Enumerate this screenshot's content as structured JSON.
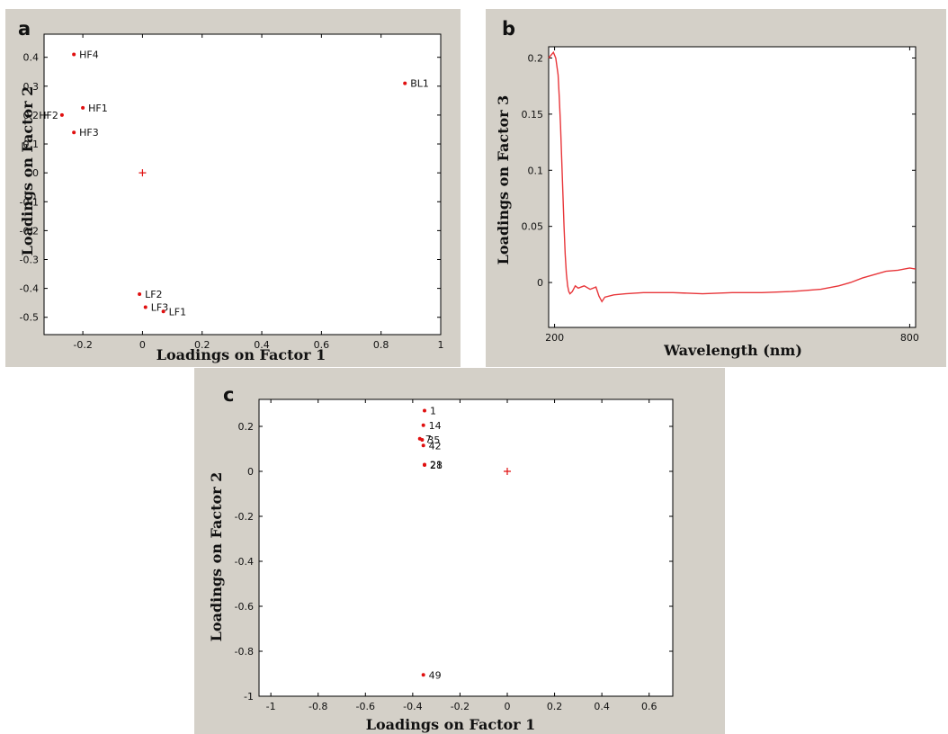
{
  "chart_data": [
    {
      "panel": "a",
      "type": "scatter",
      "xlabel": "Loadings on Factor 1",
      "ylabel": "Loadings on Factor 2",
      "xlim": [
        -0.33,
        1.0
      ],
      "ylim": [
        -0.56,
        0.48
      ],
      "xticks": [
        {
          "v": -0.2,
          "label": "-0.2"
        },
        {
          "v": 0,
          "label": "0"
        },
        {
          "v": 0.2,
          "label": "0.2"
        },
        {
          "v": 0.4,
          "label": "0.4"
        },
        {
          "v": 0.6,
          "label": "0.6"
        },
        {
          "v": 0.8,
          "label": "0.8"
        },
        {
          "v": 1,
          "label": "1"
        }
      ],
      "yticks": [
        {
          "v": 0.4,
          "label": "0.4"
        },
        {
          "v": 0.3,
          "label": "0.3"
        },
        {
          "v": 0.2,
          "label": "0.2"
        },
        {
          "v": 0.1,
          "label": "0.1"
        },
        {
          "v": 0,
          "label": "0"
        },
        {
          "v": -0.1,
          "label": "-0.1"
        },
        {
          "v": -0.2,
          "label": "-0.2"
        },
        {
          "v": -0.3,
          "label": "-0.3"
        },
        {
          "v": -0.4,
          "label": "-0.4"
        },
        {
          "v": -0.5,
          "label": "-0.5"
        }
      ],
      "points": [
        {
          "label": "HF4",
          "x": -0.23,
          "y": 0.41,
          "side": "right"
        },
        {
          "label": "HF1",
          "x": -0.2,
          "y": 0.225,
          "side": "right"
        },
        {
          "label": "HF2",
          "x": -0.27,
          "y": 0.2,
          "side": "left"
        },
        {
          "label": "HF3",
          "x": -0.23,
          "y": 0.14,
          "side": "right"
        },
        {
          "label": "BL1",
          "x": 0.88,
          "y": 0.31,
          "side": "right"
        },
        {
          "label": "LF2",
          "x": -0.01,
          "y": -0.42,
          "side": "right"
        },
        {
          "label": "LF3",
          "x": 0.01,
          "y": -0.465,
          "side": "right"
        },
        {
          "label": "LF1",
          "x": 0.07,
          "y": -0.48,
          "side": "right"
        }
      ],
      "origin_marker": {
        "x": 0,
        "y": 0
      },
      "grid": false,
      "point_color": "#e01010"
    },
    {
      "panel": "b",
      "type": "line",
      "xlabel": "Wavelength (nm)",
      "ylabel": "Loadings on Factor 3",
      "xlim": [
        190,
        810
      ],
      "ylim": [
        -0.04,
        0.21
      ],
      "xticks": [
        {
          "v": 200,
          "label": "200"
        },
        {
          "v": 800,
          "label": "800"
        }
      ],
      "yticks": [
        {
          "v": 0.2,
          "label": "0.2"
        },
        {
          "v": 0.15,
          "label": "0.15"
        },
        {
          "v": 0.1,
          "label": "0.1"
        },
        {
          "v": 0.05,
          "label": "0.05"
        },
        {
          "v": 0,
          "label": "0"
        }
      ],
      "series": [
        {
          "x": [
            190,
            198,
            202,
            206,
            208,
            210,
            212,
            214,
            216,
            218,
            220,
            222,
            224,
            226,
            230,
            235,
            240,
            250,
            260,
            270,
            275,
            280,
            285,
            300,
            320,
            350,
            400,
            450,
            500,
            550,
            600,
            650,
            680,
            700,
            720,
            740,
            760,
            780,
            800,
            810
          ],
          "y": [
            0.2,
            0.205,
            0.2,
            0.185,
            0.165,
            0.14,
            0.11,
            0.08,
            0.05,
            0.025,
            0.008,
            -0.003,
            -0.008,
            -0.01,
            -0.008,
            -0.003,
            -0.005,
            -0.003,
            -0.006,
            -0.004,
            -0.012,
            -0.017,
            -0.013,
            -0.011,
            -0.01,
            -0.009,
            -0.009,
            -0.01,
            -0.009,
            -0.009,
            -0.008,
            -0.006,
            -0.003,
            0.0,
            0.004,
            0.007,
            0.01,
            0.011,
            0.013,
            0.012
          ]
        }
      ],
      "line_color": "#e8363a",
      "grid": false
    },
    {
      "panel": "c",
      "type": "scatter",
      "xlabel": "Loadings on Factor 1",
      "ylabel": "Loadings on Factor 2",
      "xlim": [
        -1.05,
        0.7
      ],
      "ylim": [
        -1.0,
        0.32
      ],
      "xticks": [
        {
          "v": -1,
          "label": "-1"
        },
        {
          "v": -0.8,
          "label": "-0.8"
        },
        {
          "v": -0.6,
          "label": "-0.6"
        },
        {
          "v": -0.4,
          "label": "-0.4"
        },
        {
          "v": -0.2,
          "label": "-0.2"
        },
        {
          "v": 0,
          "label": "0"
        },
        {
          "v": 0.2,
          "label": "0.2"
        },
        {
          "v": 0.4,
          "label": "0.4"
        },
        {
          "v": 0.6,
          "label": "0.6"
        }
      ],
      "yticks": [
        {
          "v": 0.2,
          "label": "0.2"
        },
        {
          "v": 0,
          "label": "0"
        },
        {
          "v": -0.2,
          "label": "-0.2"
        },
        {
          "v": -0.4,
          "label": "-0.4"
        },
        {
          "v": -0.6,
          "label": "-0.6"
        },
        {
          "v": -0.8,
          "label": "-0.8"
        },
        {
          "v": -1,
          "label": "-1"
        }
      ],
      "points": [
        {
          "label": "1",
          "x": -0.35,
          "y": 0.27,
          "side": "right"
        },
        {
          "label": "14",
          "x": -0.355,
          "y": 0.205,
          "side": "right"
        },
        {
          "label": "7",
          "x": -0.37,
          "y": 0.145,
          "side": "right"
        },
        {
          "label": "35",
          "x": -0.36,
          "y": 0.14,
          "side": "right"
        },
        {
          "label": "42",
          "x": -0.355,
          "y": 0.115,
          "side": "right"
        },
        {
          "label": "21",
          "x": -0.35,
          "y": 0.03,
          "side": "right"
        },
        {
          "label": "28",
          "x": -0.35,
          "y": 0.028,
          "side": "right"
        },
        {
          "label": "49",
          "x": -0.355,
          "y": -0.905,
          "side": "right"
        }
      ],
      "origin_marker": {
        "x": 0,
        "y": 0
      },
      "grid": false,
      "point_color": "#e01010"
    }
  ]
}
